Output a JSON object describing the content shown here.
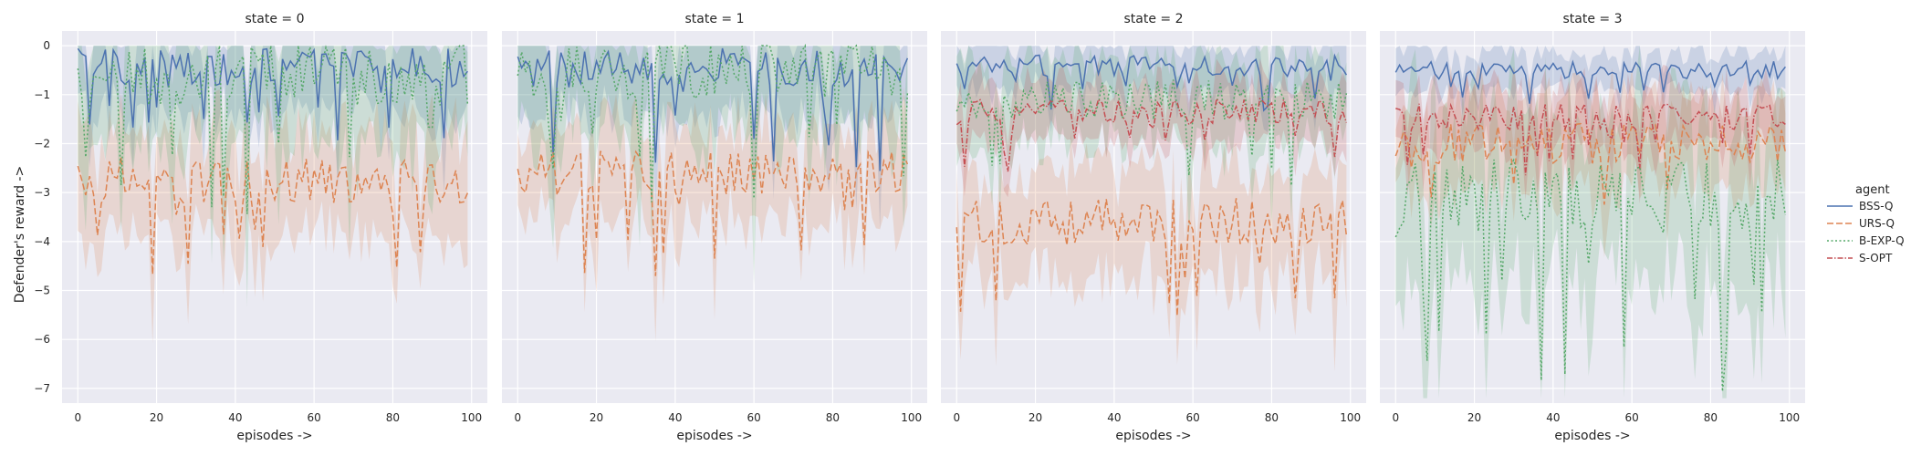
{
  "chart_data": {
    "type": "line",
    "ylabel": "Defender's reward ->",
    "xlabel": "episodes ->",
    "ylim": [
      -7.3,
      0.3
    ],
    "xlim": [
      -4,
      104
    ],
    "x_ticks": [
      0,
      20,
      40,
      60,
      80,
      100
    ],
    "y_ticks": [
      0,
      -1,
      -2,
      -3,
      -4,
      -5,
      -6,
      -7
    ],
    "grid": true,
    "legend": {
      "title": "agent",
      "placement": "right",
      "entries": [
        "BSS-Q",
        "URS-Q",
        "B-EXP-Q",
        "S-OPT"
      ]
    },
    "series_styles": [
      {
        "name": "BSS-Q",
        "color": "#4c72b0",
        "dash": "solid"
      },
      {
        "name": "URS-Q",
        "color": "#dd8452",
        "dash": "dashed"
      },
      {
        "name": "B-EXP-Q",
        "color": "#55a868",
        "dash": "dotted"
      },
      {
        "name": "S-OPT",
        "color": "#c44e52",
        "dash": "dashdot"
      }
    ],
    "episodes": 100,
    "panels": [
      {
        "title": "state = 0",
        "series": [
          {
            "name": "BSS-Q",
            "mean_approx": -0.45,
            "band_halfwidth_approx": 0.9
          },
          {
            "name": "URS-Q",
            "mean_approx": -2.75,
            "band_halfwidth_approx": 1.1
          },
          {
            "name": "B-EXP-Q",
            "mean_approx": -0.6,
            "band_halfwidth_approx": 1.4
          }
        ]
      },
      {
        "title": "state = 1",
        "series": [
          {
            "name": "BSS-Q",
            "mean_approx": -0.45,
            "band_halfwidth_approx": 0.9
          },
          {
            "name": "URS-Q",
            "mean_approx": -2.6,
            "band_halfwidth_approx": 1.0
          },
          {
            "name": "B-EXP-Q",
            "mean_approx": -0.5,
            "band_halfwidth_approx": 1.3
          }
        ]
      },
      {
        "title": "state = 2",
        "series": [
          {
            "name": "BSS-Q",
            "mean_approx": -0.4,
            "band_halfwidth_approx": 0.5
          },
          {
            "name": "URS-Q",
            "mean_approx": -3.6,
            "band_halfwidth_approx": 1.1
          },
          {
            "name": "B-EXP-Q",
            "mean_approx": -1.1,
            "band_halfwidth_approx": 0.9
          },
          {
            "name": "S-OPT",
            "mean_approx": -1.35,
            "band_halfwidth_approx": 0.6
          }
        ]
      },
      {
        "title": "state = 3",
        "series": [
          {
            "name": "BSS-Q",
            "mean_approx": -0.5,
            "band_halfwidth_approx": 0.4
          },
          {
            "name": "URS-Q",
            "mean_approx": -2.0,
            "band_halfwidth_approx": 0.9
          },
          {
            "name": "B-EXP-Q",
            "mean_approx": -3.1,
            "band_halfwidth_approx": 1.8
          },
          {
            "name": "S-OPT",
            "mean_approx": -1.45,
            "band_halfwidth_approx": 0.6
          }
        ]
      }
    ]
  }
}
